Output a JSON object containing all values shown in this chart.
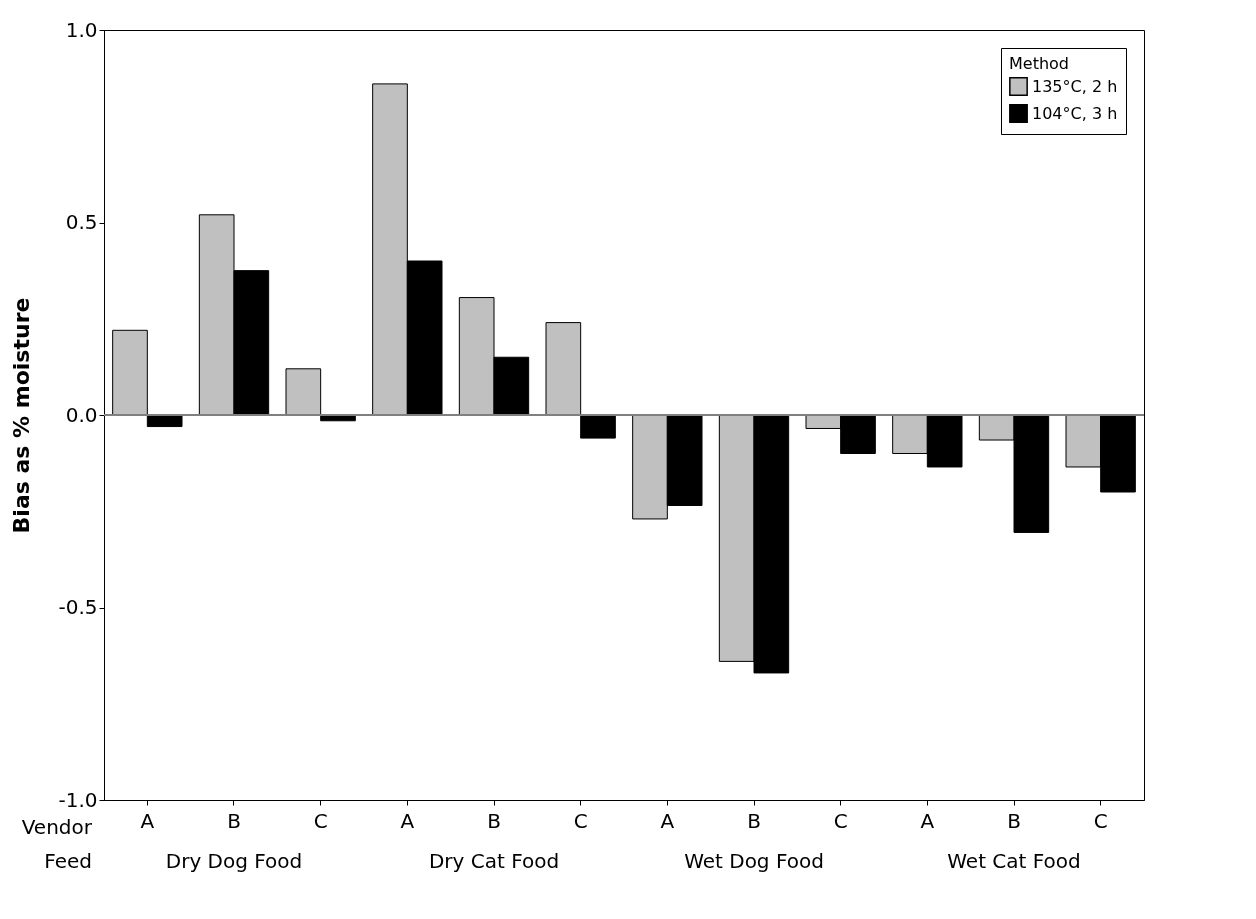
{
  "chart_data": {
    "type": "bar",
    "categories": [
      "A",
      "B",
      "C",
      "A",
      "B",
      "C",
      "A",
      "B",
      "C",
      "A",
      "B",
      "C"
    ],
    "series": [
      {
        "name": "135°C, 2 h",
        "color": "#c0c0c0",
        "values": [
          0.22,
          0.52,
          0.12,
          0.86,
          0.305,
          0.24,
          -0.27,
          -0.64,
          -0.035,
          -0.1,
          -0.065,
          -0.135
        ]
      },
      {
        "name": "104°C, 3 h",
        "color": "#000000",
        "values": [
          -0.03,
          0.375,
          -0.015,
          0.4,
          0.15,
          -0.06,
          -0.235,
          -0.67,
          -0.1,
          -0.135,
          -0.305,
          -0.2
        ]
      }
    ],
    "ylabel": "Bias as % moisture",
    "legend_title": "Method",
    "legend": "top right",
    "ylim": [
      -1.0,
      1.0
    ],
    "yticks": [
      {
        "value": -1,
        "label": "-1.0"
      },
      {
        "value": -0.5,
        "label": "-0.5"
      },
      {
        "value": 0,
        "label": "0.0"
      },
      {
        "value": 0.5,
        "label": "0.5"
      },
      {
        "value": 1,
        "label": "1.0"
      }
    ],
    "ref_lines": [
      {
        "axis": "y",
        "value": 0,
        "color": "#808080"
      }
    ],
    "annotations": [
      "Vendor",
      "Feed",
      "Dry Dog Food",
      "Dry Cat Food",
      "Wet Dog Food",
      "Wet Cat Food"
    ]
  }
}
